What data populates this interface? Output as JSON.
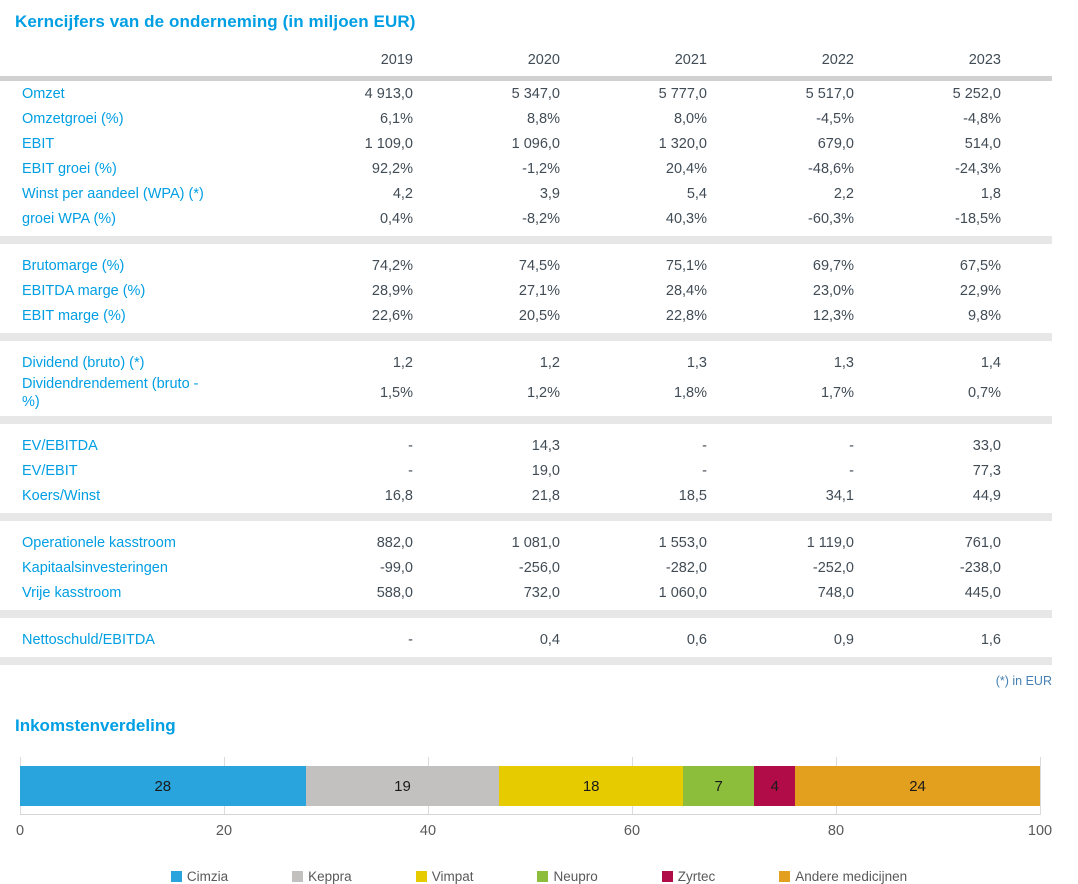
{
  "table": {
    "title": "Kerncijfers van de onderneming (in miljoen EUR)",
    "years": [
      "2019",
      "2020",
      "2021",
      "2022",
      "2023"
    ],
    "sections": [
      {
        "rows": [
          {
            "label": "Omzet",
            "values": [
              "4 913,0",
              "5 347,0",
              "5 777,0",
              "5 517,0",
              "5 252,0"
            ]
          },
          {
            "label": "Omzetgroei (%)",
            "values": [
              "6,1%",
              "8,8%",
              "8,0%",
              "-4,5%",
              "-4,8%"
            ]
          },
          {
            "label": "EBIT",
            "values": [
              "1 109,0",
              "1 096,0",
              "1 320,0",
              "679,0",
              "514,0"
            ]
          },
          {
            "label": "EBIT groei (%)",
            "values": [
              "92,2%",
              "-1,2%",
              "20,4%",
              "-48,6%",
              "-24,3%"
            ]
          },
          {
            "label": "Winst per aandeel (WPA) (*)",
            "values": [
              "4,2",
              "3,9",
              "5,4",
              "2,2",
              "1,8"
            ]
          },
          {
            "label": "groei WPA (%)",
            "values": [
              "0,4%",
              "-8,2%",
              "40,3%",
              "-60,3%",
              "-18,5%"
            ]
          }
        ]
      },
      {
        "rows": [
          {
            "label": "Brutomarge (%)",
            "values": [
              "74,2%",
              "74,5%",
              "75,1%",
              "69,7%",
              "67,5%"
            ]
          },
          {
            "label": "EBITDA marge (%)",
            "values": [
              "28,9%",
              "27,1%",
              "28,4%",
              "23,0%",
              "22,9%"
            ]
          },
          {
            "label": "EBIT marge (%)",
            "values": [
              "22,6%",
              "20,5%",
              "22,8%",
              "12,3%",
              "9,8%"
            ]
          }
        ]
      },
      {
        "rows": [
          {
            "label": "Dividend (bruto) (*)",
            "values": [
              "1,2",
              "1,2",
              "1,3",
              "1,3",
              "1,4"
            ]
          },
          {
            "label": "Dividendrendement (bruto - %)",
            "values": [
              "1,5%",
              "1,2%",
              "1,8%",
              "1,7%",
              "0,7%"
            ]
          }
        ]
      },
      {
        "rows": [
          {
            "label": "EV/EBITDA",
            "values": [
              "-",
              "14,3",
              "-",
              "-",
              "33,0"
            ]
          },
          {
            "label": "EV/EBIT",
            "values": [
              "-",
              "19,0",
              "-",
              "-",
              "77,3"
            ]
          },
          {
            "label": "Koers/Winst",
            "values": [
              "16,8",
              "21,8",
              "18,5",
              "34,1",
              "44,9"
            ]
          }
        ]
      },
      {
        "rows": [
          {
            "label": "Operationele kasstroom",
            "values": [
              "882,0",
              "1 081,0",
              "1 553,0",
              "1 119,0",
              "761,0"
            ]
          },
          {
            "label": "Kapitaalsinvesteringen",
            "values": [
              "-99,0",
              "-256,0",
              "-282,0",
              "-252,0",
              "-238,0"
            ]
          },
          {
            "label": "Vrije kasstroom",
            "values": [
              "588,0",
              "732,0",
              "1 060,0",
              "748,0",
              "445,0"
            ]
          }
        ]
      },
      {
        "rows": [
          {
            "label": "Nettoschuld/EBITDA",
            "values": [
              "-",
              "0,4",
              "0,6",
              "0,9",
              "1,6"
            ]
          }
        ]
      }
    ],
    "footnote": "(*) in EUR"
  },
  "chart": {
    "title": "Inkomstenverdeling"
  },
  "chart_data": {
    "type": "bar",
    "orientation": "horizontal-stacked",
    "title": "Inkomstenverdeling",
    "xlim": [
      0,
      100
    ],
    "x_ticks": [
      0,
      20,
      40,
      60,
      80,
      100
    ],
    "grid": true,
    "legend_position": "bottom",
    "segments": [
      {
        "label": "Cimzia",
        "value": 28,
        "color": "#29A4DC"
      },
      {
        "label": "Keppra",
        "value": 19,
        "color": "#C2C1C0"
      },
      {
        "label": "Vimpat",
        "value": 18,
        "color": "#E5CB00"
      },
      {
        "label": "Neupro",
        "value": 7,
        "color": "#8CBE3C"
      },
      {
        "label": "Zyrtec",
        "value": 4,
        "color": "#B10C47"
      },
      {
        "label": "Andere medicijnen",
        "value": 24,
        "color": "#E2A01E"
      }
    ]
  },
  "colors": {
    "accent_blue": "#009FE3",
    "value_text": "#414C56",
    "footnote_blue": "#4580B4",
    "separator_gray": "#E7E7E7",
    "axis_text_gray": "#595959"
  }
}
